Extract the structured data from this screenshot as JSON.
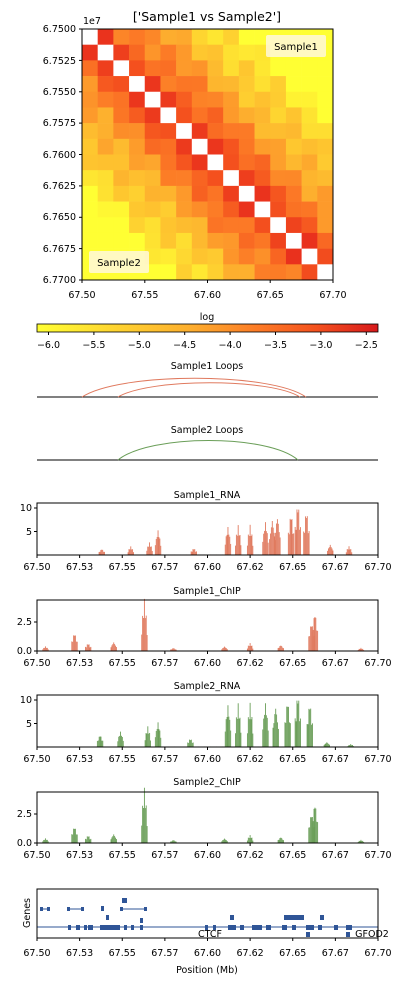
{
  "heatmap": {
    "title": "['Sample1 vs Sample2']",
    "exponent_label": "1e7",
    "y_ticks": [
      "6.7500",
      "6.7525",
      "6.7550",
      "6.7575",
      "6.7600",
      "6.7625",
      "6.7650",
      "6.7675",
      "6.7700"
    ],
    "x_ticks": [
      "67.50",
      "67.55",
      "67.60",
      "67.65",
      "67.70"
    ],
    "upper_label": "Sample1",
    "lower_label": "Sample2"
  },
  "colorbar": {
    "label": "log",
    "ticks": [
      "−6.0",
      "−5.5",
      "−5.0",
      "−4.5",
      "−4.0",
      "−3.5",
      "−3.0",
      "−2.5"
    ],
    "colors": [
      "#ffff33",
      "#fed030",
      "#fdae2e",
      "#fc7a26",
      "#f4511e",
      "#e21b1c"
    ]
  },
  "loops": {
    "sample1_title": "Sample1 Loops",
    "sample2_title": "Sample2 Loops",
    "sample1_color": "#e07a5f",
    "sample2_color": "#6a9e58"
  },
  "tracks": [
    {
      "key": "s1rna",
      "title": "Sample1_RNA",
      "y_ticks": [
        "10",
        "5"
      ],
      "color": "#e07a5f"
    },
    {
      "key": "s1chip",
      "title": "Sample1_ChIP",
      "y_ticks": [
        "2.5",
        "0.0"
      ],
      "color": "#e07a5f"
    },
    {
      "key": "s2rna",
      "title": "Sample2_RNA",
      "y_ticks": [
        "10",
        "5"
      ],
      "color": "#6a9e58"
    },
    {
      "key": "s2chip",
      "title": "Sample2_ChIP",
      "y_ticks": [
        "2.5",
        "0.0"
      ],
      "color": "#6a9e58"
    }
  ],
  "track_x_ticks": [
    "67.50",
    "67.53",
    "67.55",
    "67.57",
    "67.60",
    "67.62",
    "67.65",
    "67.67",
    "67.70"
  ],
  "genes": {
    "ylabel": "Genes",
    "xlabel": "Position (Mb)",
    "labels": [
      "CTCF",
      "GFOD2"
    ],
    "color": "#2f5597"
  },
  "chart_data": [
    {
      "type": "heatmap",
      "title": "['Sample1 vs Sample2']",
      "x_range": [
        67.5,
        67.7
      ],
      "y_range": [
        67500000,
        67700000
      ],
      "colorbar_range": [
        -6.0,
        -2.5
      ],
      "diagonal_masked": true
    },
    {
      "type": "line",
      "title": "Sample1_RNA",
      "x_range": [
        67.5,
        67.7
      ],
      "ylim": [
        0,
        10
      ],
      "peaks": [
        {
          "x": 67.538,
          "y": 1.1
        },
        {
          "x": 67.555,
          "y": 1.5
        },
        {
          "x": 67.566,
          "y": 2.2
        },
        {
          "x": 67.571,
          "y": 4.5
        },
        {
          "x": 67.592,
          "y": 1.2
        },
        {
          "x": 67.612,
          "y": 5.1
        },
        {
          "x": 67.618,
          "y": 5.2
        },
        {
          "x": 67.625,
          "y": 5.2
        },
        {
          "x": 67.634,
          "y": 6.0
        },
        {
          "x": 67.638,
          "y": 6.5
        },
        {
          "x": 67.641,
          "y": 7.1
        },
        {
          "x": 67.649,
          "y": 7.5
        },
        {
          "x": 67.653,
          "y": 9.3
        },
        {
          "x": 67.658,
          "y": 8.0
        },
        {
          "x": 67.672,
          "y": 1.9
        },
        {
          "x": 67.683,
          "y": 1.5
        }
      ]
    },
    {
      "type": "line",
      "title": "Sample1_ChIP",
      "x_range": [
        67.5,
        67.7
      ],
      "ylim": [
        0,
        3.6
      ],
      "peaks": [
        {
          "x": 67.505,
          "y": 0.3
        },
        {
          "x": 67.522,
          "y": 1.2
        },
        {
          "x": 67.53,
          "y": 0.5
        },
        {
          "x": 67.545,
          "y": 0.6
        },
        {
          "x": 67.563,
          "y": 3.3
        },
        {
          "x": 67.58,
          "y": 0.2
        },
        {
          "x": 67.61,
          "y": 0.3
        },
        {
          "x": 67.625,
          "y": 0.5
        },
        {
          "x": 67.643,
          "y": 0.4
        },
        {
          "x": 67.661,
          "y": 1.9
        },
        {
          "x": 67.663,
          "y": 2.6
        },
        {
          "x": 67.69,
          "y": 0.2
        }
      ]
    },
    {
      "type": "line",
      "title": "Sample2_RNA",
      "x_range": [
        67.5,
        67.7
      ],
      "ylim": [
        0,
        10
      ],
      "peaks": [
        {
          "x": 67.537,
          "y": 2.2
        },
        {
          "x": 67.549,
          "y": 2.8
        },
        {
          "x": 67.565,
          "y": 3.6
        },
        {
          "x": 67.571,
          "y": 4.5
        },
        {
          "x": 67.59,
          "y": 1.5
        },
        {
          "x": 67.612,
          "y": 7.6
        },
        {
          "x": 67.618,
          "y": 7.6
        },
        {
          "x": 67.625,
          "y": 7.6
        },
        {
          "x": 67.634,
          "y": 8.0
        },
        {
          "x": 67.64,
          "y": 7.5
        },
        {
          "x": 67.647,
          "y": 8.5
        },
        {
          "x": 67.653,
          "y": 9.5
        },
        {
          "x": 67.66,
          "y": 8.0
        },
        {
          "x": 67.67,
          "y": 0.9
        },
        {
          "x": 67.684,
          "y": 0.5
        }
      ]
    },
    {
      "type": "line",
      "title": "Sample2_ChIP",
      "x_range": [
        67.5,
        67.7
      ],
      "ylim": [
        0,
        3.6
      ],
      "peaks": [
        {
          "x": 67.505,
          "y": 0.3
        },
        {
          "x": 67.522,
          "y": 1.1
        },
        {
          "x": 67.53,
          "y": 0.5
        },
        {
          "x": 67.545,
          "y": 0.6
        },
        {
          "x": 67.563,
          "y": 3.5
        },
        {
          "x": 67.58,
          "y": 0.2
        },
        {
          "x": 67.61,
          "y": 0.3
        },
        {
          "x": 67.625,
          "y": 0.5
        },
        {
          "x": 67.643,
          "y": 0.4
        },
        {
          "x": 67.661,
          "y": 2.0
        },
        {
          "x": 67.663,
          "y": 2.7
        },
        {
          "x": 67.69,
          "y": 0.2
        }
      ]
    }
  ]
}
